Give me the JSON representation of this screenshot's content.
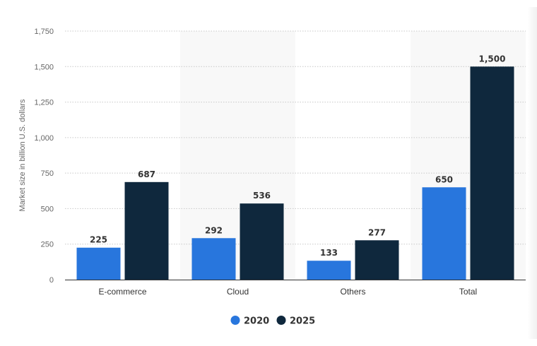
{
  "chart_data": {
    "type": "bar",
    "categories": [
      "E-commerce",
      "Cloud",
      "Others",
      "Total"
    ],
    "series": [
      {
        "name": "2020",
        "values": [
          225,
          292,
          133,
          650
        ],
        "color": "#2876dd"
      },
      {
        "name": "2025",
        "values": [
          687,
          536,
          277,
          1500
        ],
        "color": "#0f283d"
      }
    ],
    "value_labels": [
      [
        "225",
        "292",
        "133",
        "650"
      ],
      [
        "687",
        "536",
        "277",
        "1,500"
      ]
    ],
    "ylabel": "Market size in billion U.S. dollars",
    "ylim": [
      0,
      1750
    ],
    "yticks": [
      0,
      250,
      500,
      750,
      1000,
      1250,
      1500,
      1750
    ],
    "ytick_labels": [
      "0",
      "250",
      "500",
      "750",
      "1,000",
      "1,250",
      "1,500",
      "1,750"
    ],
    "grid": true,
    "legend_position": "bottom-center",
    "colors": {
      "band": "#f8f8f8",
      "grid": "#c8c8c8",
      "axis": "#333333"
    }
  }
}
